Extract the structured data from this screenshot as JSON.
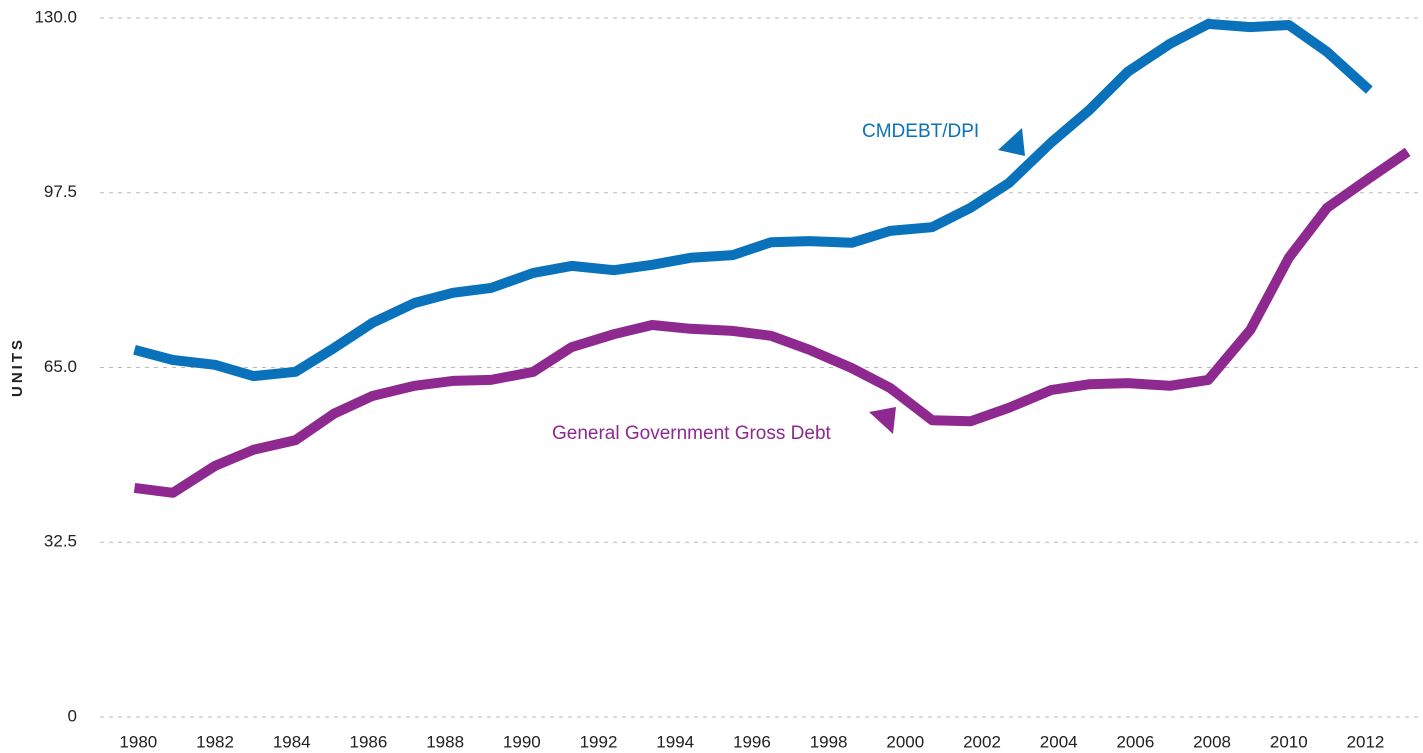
{
  "chart_data": {
    "type": "line",
    "y_label": "UNITS",
    "x": [
      1979.9,
      1980.9,
      1982.0,
      1983.0,
      1984.1,
      1985.1,
      1986.1,
      1987.2,
      1988.2,
      1989.2,
      1990.3,
      1991.3,
      1992.4,
      1993.4,
      1994.4,
      1995.5,
      1996.5,
      1997.5,
      1998.6,
      1999.6,
      2000.7,
      2001.7,
      2002.7,
      2003.8,
      2004.8,
      2005.8,
      2006.9,
      2007.9,
      2009.0,
      2010.0,
      2011.0,
      2012.1,
      2013.1
    ],
    "series": [
      {
        "name": "CMDEBT/DPI",
        "color": "#0a72ba",
        "values": [
          68.3,
          66.4,
          65.5,
          63.4,
          64.2,
          68.6,
          73.3,
          77.0,
          78.9,
          79.8,
          82.6,
          83.9,
          83.1,
          84.1,
          85.4,
          85.9,
          88.3,
          88.5,
          88.2,
          90.4,
          91.1,
          94.7,
          99.3,
          106.8,
          112.9,
          120.0,
          125.2,
          128.9,
          128.3,
          128.7,
          123.7,
          116.6,
          null
        ]
      },
      {
        "name": "General Government Gross Debt",
        "color": "#8e2a8f",
        "values": [
          42.6,
          41.7,
          46.7,
          49.7,
          51.5,
          56.4,
          59.7,
          61.6,
          62.5,
          62.7,
          64.2,
          68.8,
          71.2,
          72.9,
          72.2,
          71.8,
          70.9,
          68.3,
          64.9,
          61.2,
          55.2,
          55.0,
          57.5,
          60.8,
          61.9,
          62.1,
          61.6,
          62.7,
          72.0,
          85.4,
          94.7,
          100.2,
          105.1
        ]
      }
    ],
    "xlim": [
      1979,
      2013.5
    ],
    "xticks": [
      1980,
      1982,
      1984,
      1986,
      1988,
      1990,
      1992,
      1994,
      1996,
      1998,
      2000,
      2002,
      2004,
      2006,
      2008,
      2010,
      2012
    ],
    "ylim": [
      0,
      130
    ],
    "yticks": [
      0,
      32.5,
      {
        "value": 65,
        "label": "65.0"
      },
      97.5,
      {
        "value": 130,
        "label": "130.0"
      }
    ],
    "grid": true
  }
}
